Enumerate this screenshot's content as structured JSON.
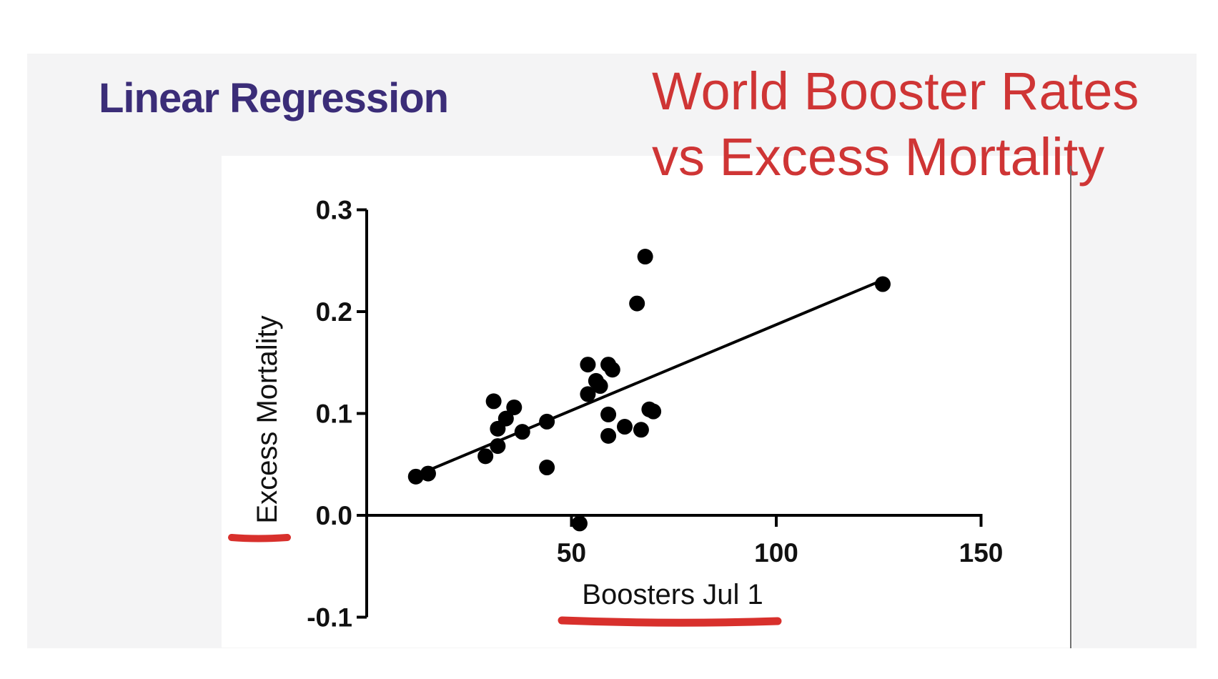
{
  "slide": {
    "heading": "Linear Regression",
    "title_line1": "World Booster Rates",
    "title_line2": "vs Excess Mortality",
    "colors": {
      "heading": "#3b2d78",
      "title": "#cf3535",
      "annotation": "#d8302c",
      "data": "#000000"
    }
  },
  "chart_data": {
    "type": "scatter",
    "xlabel": "Boosters Jul 1",
    "ylabel": "Excess Mortality",
    "xlim": [
      0,
      150
    ],
    "ylim": [
      -0.1,
      0.3
    ],
    "xticks": [
      50,
      100,
      150
    ],
    "xtick_labels": [
      "50",
      "100",
      "150"
    ],
    "yticks": [
      -0.1,
      0.0,
      0.1,
      0.2,
      0.3
    ],
    "ytick_labels": [
      "-0.1",
      "0.0",
      "0.1",
      "0.2",
      "0.3"
    ],
    "grid": false,
    "points": [
      {
        "x": 12,
        "y": 0.038
      },
      {
        "x": 15,
        "y": 0.041
      },
      {
        "x": 29,
        "y": 0.058
      },
      {
        "x": 31,
        "y": 0.112
      },
      {
        "x": 32,
        "y": 0.085
      },
      {
        "x": 32,
        "y": 0.068
      },
      {
        "x": 34,
        "y": 0.095
      },
      {
        "x": 36,
        "y": 0.106
      },
      {
        "x": 38,
        "y": 0.082
      },
      {
        "x": 44,
        "y": 0.092
      },
      {
        "x": 44,
        "y": 0.047
      },
      {
        "x": 52,
        "y": -0.008
      },
      {
        "x": 54,
        "y": 0.148
      },
      {
        "x": 54,
        "y": 0.119
      },
      {
        "x": 56,
        "y": 0.132
      },
      {
        "x": 57,
        "y": 0.127
      },
      {
        "x": 59,
        "y": 0.148
      },
      {
        "x": 60,
        "y": 0.143
      },
      {
        "x": 59,
        "y": 0.099
      },
      {
        "x": 59,
        "y": 0.078
      },
      {
        "x": 63,
        "y": 0.087
      },
      {
        "x": 66,
        "y": 0.208
      },
      {
        "x": 67,
        "y": 0.084
      },
      {
        "x": 68,
        "y": 0.254
      },
      {
        "x": 69,
        "y": 0.104
      },
      {
        "x": 70,
        "y": 0.102
      },
      {
        "x": 126,
        "y": 0.227
      }
    ],
    "regression_line": {
      "x": [
        12,
        126
      ],
      "y": [
        0.039,
        0.231
      ]
    },
    "annotations": [
      "red underline beneath x-axis label",
      "red underline beneath y-axis label"
    ]
  }
}
